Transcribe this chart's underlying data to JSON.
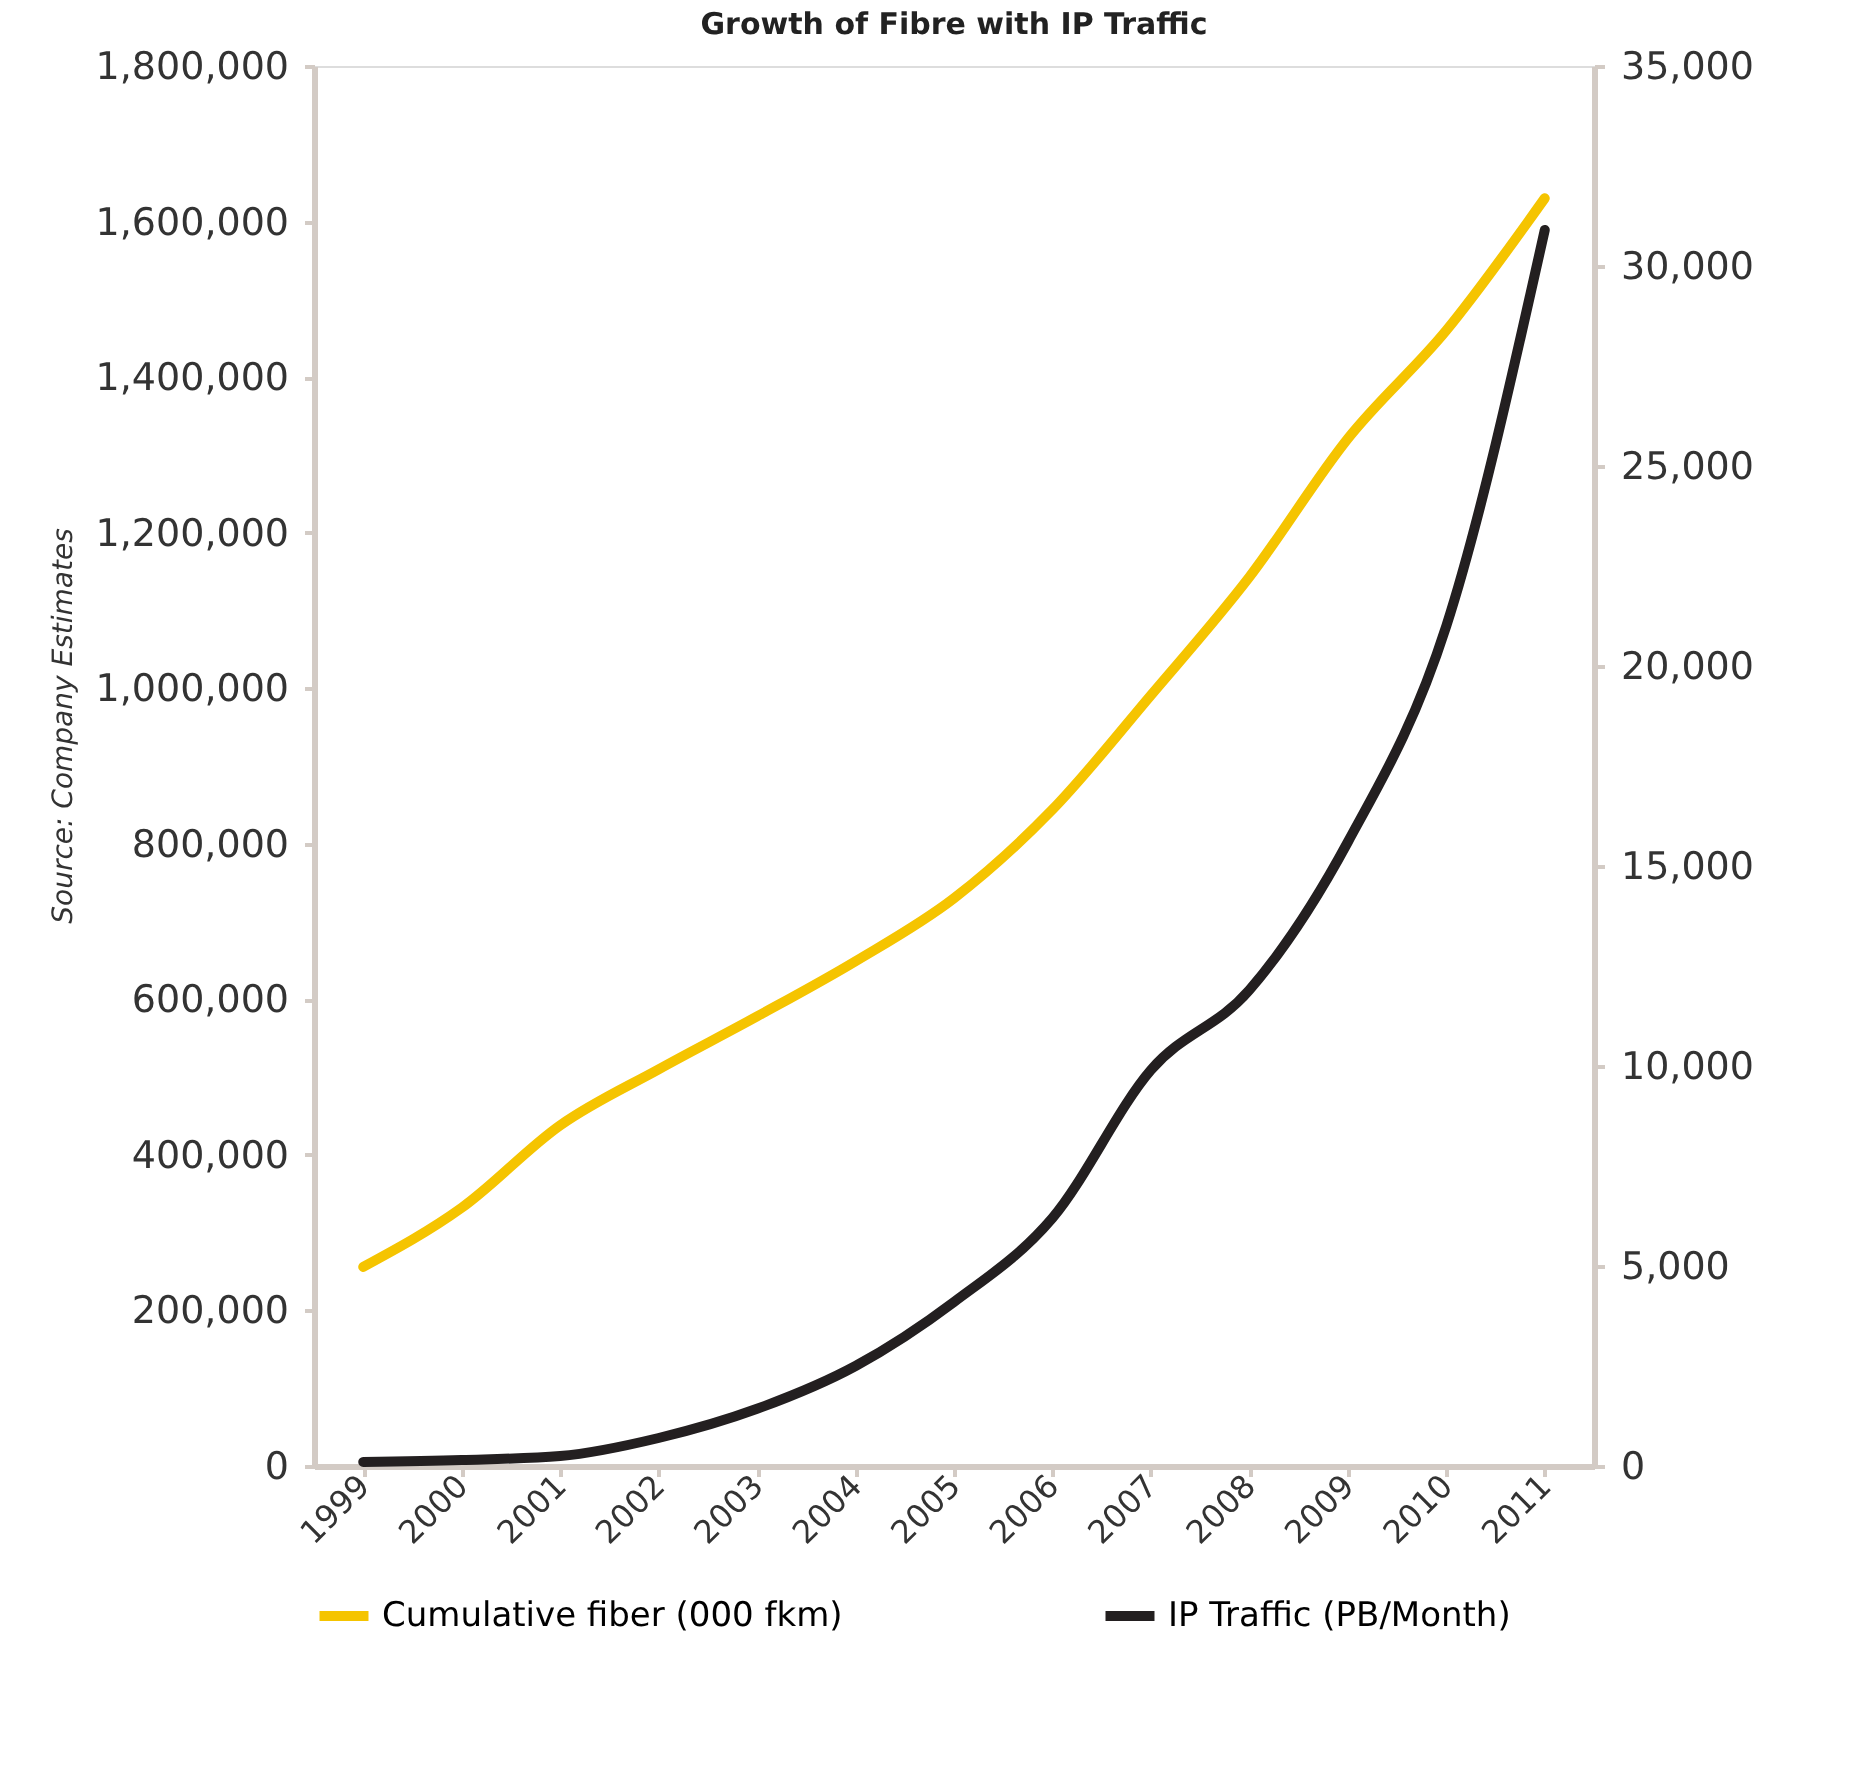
{
  "chart_data": {
    "type": "line",
    "title": "Growth of Fibre with IP Traffic",
    "categories": [
      "1999",
      "2000",
      "2001",
      "2002",
      "2003",
      "2004",
      "2005",
      "2006",
      "2007",
      "2008",
      "2009",
      "2010",
      "2011"
    ],
    "series": [
      {
        "name": "Cumulative fiber (000 fkm)",
        "color": "#f5c400",
        "values": [
          256000,
          332000,
          438000,
          510000,
          578000,
          649000,
          730000,
          844000,
          991000,
          1143000,
          1321000,
          1460000,
          1630000
        ]
      },
      {
        "name": "IP Traffic (PB/Month)",
        "color": "#231f20",
        "axis": "y2",
        "values": [
          100,
          150,
          250,
          700,
          1430,
          2500,
          4100,
          6200,
          9900,
          11900,
          15600,
          21000,
          30900
        ]
      }
    ],
    "ylim": [
      0,
      1800000
    ],
    "yticks": [
      0,
      {
        "value": 200000,
        "label": "200,000"
      },
      {
        "value": 400000,
        "label": "400,000"
      },
      {
        "value": 600000,
        "label": "600,000"
      },
      {
        "value": 800000,
        "label": "800,000"
      },
      {
        "value": 1000000,
        "label": "1,000,000"
      },
      {
        "value": 1200000,
        "label": "1,200,000"
      },
      {
        "value": 1400000,
        "label": "1,400,000"
      },
      {
        "value": 1600000,
        "label": "1,600,000"
      },
      {
        "value": 1800000,
        "label": "1,800,000"
      }
    ],
    "y2lim": [
      0,
      35000
    ],
    "y2ticks": [
      0,
      {
        "value": 5000,
        "label": "5,000"
      },
      {
        "value": 10000,
        "label": "10,000"
      },
      {
        "value": 15000,
        "label": "15,000"
      },
      {
        "value": 20000,
        "label": "20,000"
      },
      {
        "value": 25000,
        "label": "25,000"
      },
      {
        "value": 30000,
        "label": "30,000"
      },
      {
        "value": 35000,
        "label": "35,000"
      }
    ],
    "grid": false,
    "legend": "bottom",
    "marker": "none",
    "line_style": "solid",
    "annotations": [
      "Source: Company Estimates"
    ]
  }
}
